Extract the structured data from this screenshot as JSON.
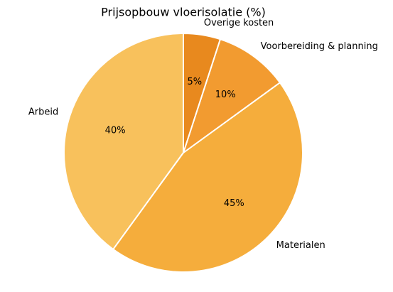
{
  "chart_data": {
    "type": "pie",
    "title": "Prijsopbouw vloerisolatie (%)",
    "categories": [
      "Arbeid",
      "Materialen",
      "Voorbereiding & planning",
      "Overige kosten"
    ],
    "values": [
      40,
      45,
      10,
      5
    ],
    "value_labels": [
      "40%",
      "45%",
      "10%",
      "5%"
    ],
    "colors": [
      "#f8c15c",
      "#f5ad3c",
      "#f29b30",
      "#e8891e"
    ]
  }
}
